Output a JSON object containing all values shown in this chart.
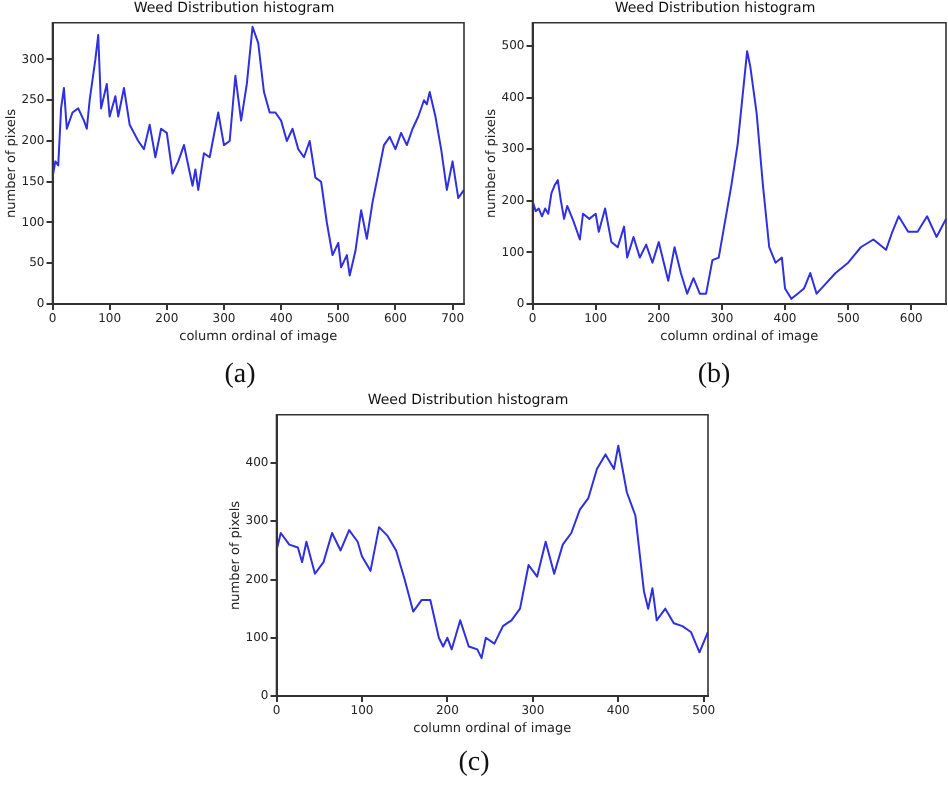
{
  "chart_data": [
    {
      "type": "line",
      "title": "Weed Distribution histogram",
      "xlabel": "column ordinal of image",
      "ylabel": "number of pixels",
      "annotations": [
        "(a)"
      ],
      "xlim": [
        0,
        720
      ],
      "xticks": [
        0,
        100,
        200,
        300,
        400,
        500,
        600,
        700
      ],
      "ylim": [
        0,
        345
      ],
      "yticks": [
        0,
        50,
        100,
        150,
        200,
        250,
        300
      ],
      "grid": false,
      "legend": false,
      "x": [
        0,
        5,
        10,
        15,
        20,
        25,
        35,
        45,
        55,
        60,
        65,
        75,
        80,
        85,
        95,
        100,
        110,
        115,
        125,
        135,
        150,
        160,
        170,
        180,
        190,
        200,
        210,
        220,
        230,
        245,
        250,
        255,
        265,
        275,
        290,
        300,
        310,
        320,
        330,
        340,
        350,
        360,
        370,
        380,
        390,
        400,
        410,
        420,
        430,
        440,
        450,
        460,
        470,
        480,
        490,
        500,
        505,
        515,
        520,
        530,
        540,
        550,
        560,
        570,
        580,
        590,
        600,
        610,
        620,
        630,
        640,
        650,
        655,
        660,
        670,
        680,
        690,
        700,
        710,
        720
      ],
      "series": [
        {
          "color": "#3030e0",
          "values": [
            155,
            175,
            170,
            240,
            265,
            215,
            235,
            240,
            225,
            215,
            250,
            300,
            330,
            240,
            270,
            230,
            255,
            230,
            265,
            220,
            200,
            190,
            220,
            180,
            215,
            210,
            160,
            175,
            195,
            145,
            165,
            140,
            185,
            180,
            235,
            195,
            200,
            280,
            225,
            270,
            340,
            320,
            260,
            235,
            235,
            225,
            200,
            215,
            190,
            180,
            200,
            155,
            150,
            100,
            60,
            75,
            45,
            60,
            35,
            65,
            115,
            80,
            125,
            160,
            195,
            205,
            190,
            210,
            195,
            215,
            230,
            250,
            245,
            260,
            230,
            190,
            140,
            175,
            130,
            140
          ]
        }
      ]
    },
    {
      "type": "line",
      "title": "Weed Distribution histogram",
      "xlabel": "column ordinal of image",
      "ylabel": "number of pixels",
      "annotations": [
        "(b)"
      ],
      "xlim": [
        0,
        655
      ],
      "xticks": [
        0,
        100,
        200,
        300,
        400,
        500,
        600
      ],
      "ylim": [
        0,
        545
      ],
      "yticks": [
        0,
        100,
        200,
        300,
        400,
        500
      ],
      "grid": false,
      "legend": false,
      "x": [
        0,
        5,
        10,
        15,
        20,
        25,
        30,
        35,
        40,
        45,
        50,
        55,
        65,
        75,
        80,
        90,
        100,
        105,
        115,
        125,
        135,
        145,
        150,
        160,
        170,
        180,
        190,
        200,
        215,
        225,
        235,
        245,
        255,
        265,
        275,
        285,
        295,
        305,
        315,
        325,
        335,
        340,
        345,
        355,
        365,
        375,
        385,
        395,
        400,
        410,
        420,
        430,
        440,
        450,
        465,
        480,
        500,
        520,
        540,
        560,
        570,
        580,
        595,
        610,
        625,
        640,
        655
      ],
      "series": [
        {
          "color": "#3030e0",
          "values": [
            200,
            180,
            185,
            170,
            185,
            175,
            215,
            230,
            240,
            200,
            165,
            190,
            160,
            125,
            175,
            165,
            175,
            140,
            185,
            120,
            110,
            150,
            90,
            130,
            90,
            115,
            80,
            120,
            45,
            110,
            60,
            20,
            50,
            20,
            20,
            85,
            90,
            160,
            230,
            310,
            430,
            490,
            460,
            370,
            230,
            110,
            80,
            90,
            30,
            10,
            20,
            30,
            60,
            20,
            40,
            60,
            80,
            110,
            125,
            105,
            140,
            170,
            140,
            140,
            170,
            130,
            165
          ]
        }
      ]
    },
    {
      "type": "line",
      "title": "Weed Distribution histogram",
      "xlabel": "column ordinal of image",
      "ylabel": "number of pixels",
      "annotations": [
        "(c)"
      ],
      "xlim": [
        0,
        505
      ],
      "xticks": [
        0,
        100,
        200,
        300,
        400,
        500
      ],
      "ylim": [
        0,
        483
      ],
      "yticks": [
        0,
        100,
        200,
        300,
        400
      ],
      "grid": false,
      "legend": false,
      "x": [
        0,
        5,
        15,
        25,
        30,
        35,
        45,
        55,
        65,
        75,
        85,
        95,
        100,
        110,
        120,
        130,
        140,
        150,
        160,
        170,
        180,
        190,
        195,
        200,
        205,
        215,
        225,
        235,
        240,
        245,
        255,
        265,
        275,
        285,
        295,
        305,
        315,
        325,
        335,
        345,
        355,
        365,
        375,
        385,
        395,
        400,
        410,
        420,
        430,
        435,
        440,
        445,
        455,
        465,
        475,
        485,
        495,
        505
      ],
      "series": [
        {
          "color": "#3030e0",
          "values": [
            250,
            280,
            260,
            255,
            230,
            265,
            210,
            230,
            280,
            250,
            285,
            265,
            240,
            215,
            290,
            275,
            250,
            200,
            145,
            165,
            165,
            100,
            85,
            100,
            80,
            130,
            85,
            80,
            65,
            100,
            90,
            120,
            130,
            150,
            225,
            205,
            265,
            210,
            260,
            280,
            320,
            340,
            390,
            415,
            390,
            430,
            350,
            310,
            180,
            150,
            185,
            130,
            150,
            125,
            120,
            110,
            75,
            110
          ]
        }
      ]
    }
  ]
}
